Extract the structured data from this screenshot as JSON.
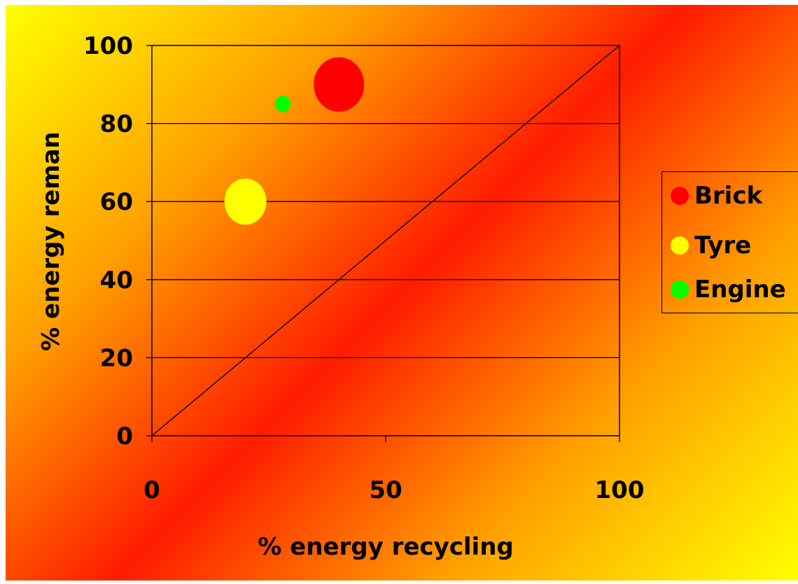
{
  "chart_data": {
    "type": "scatter",
    "title": "",
    "xlabel": "% energy recycling",
    "ylabel": "% energy reman",
    "xlim": [
      0,
      100
    ],
    "ylim": [
      0,
      100
    ],
    "x_ticks": [
      "0",
      "50",
      "100"
    ],
    "y_ticks": [
      "0",
      "20",
      "40",
      "60",
      "80",
      "100"
    ],
    "grid": "horizontal",
    "reference_line": {
      "from": [
        0,
        0
      ],
      "to": [
        100,
        100
      ]
    },
    "legend_position": "right",
    "series": [
      {
        "name": "Brick",
        "color": "#ff0000",
        "points": [
          {
            "x": 40,
            "y": 90,
            "size": "large"
          }
        ]
      },
      {
        "name": "Tyre",
        "color": "#ffff00",
        "points": [
          {
            "x": 20,
            "y": 60,
            "size": "medium"
          }
        ]
      },
      {
        "name": "Engine",
        "color": "#00ff00",
        "points": [
          {
            "x": 28,
            "y": 85,
            "size": "small"
          }
        ]
      }
    ]
  }
}
